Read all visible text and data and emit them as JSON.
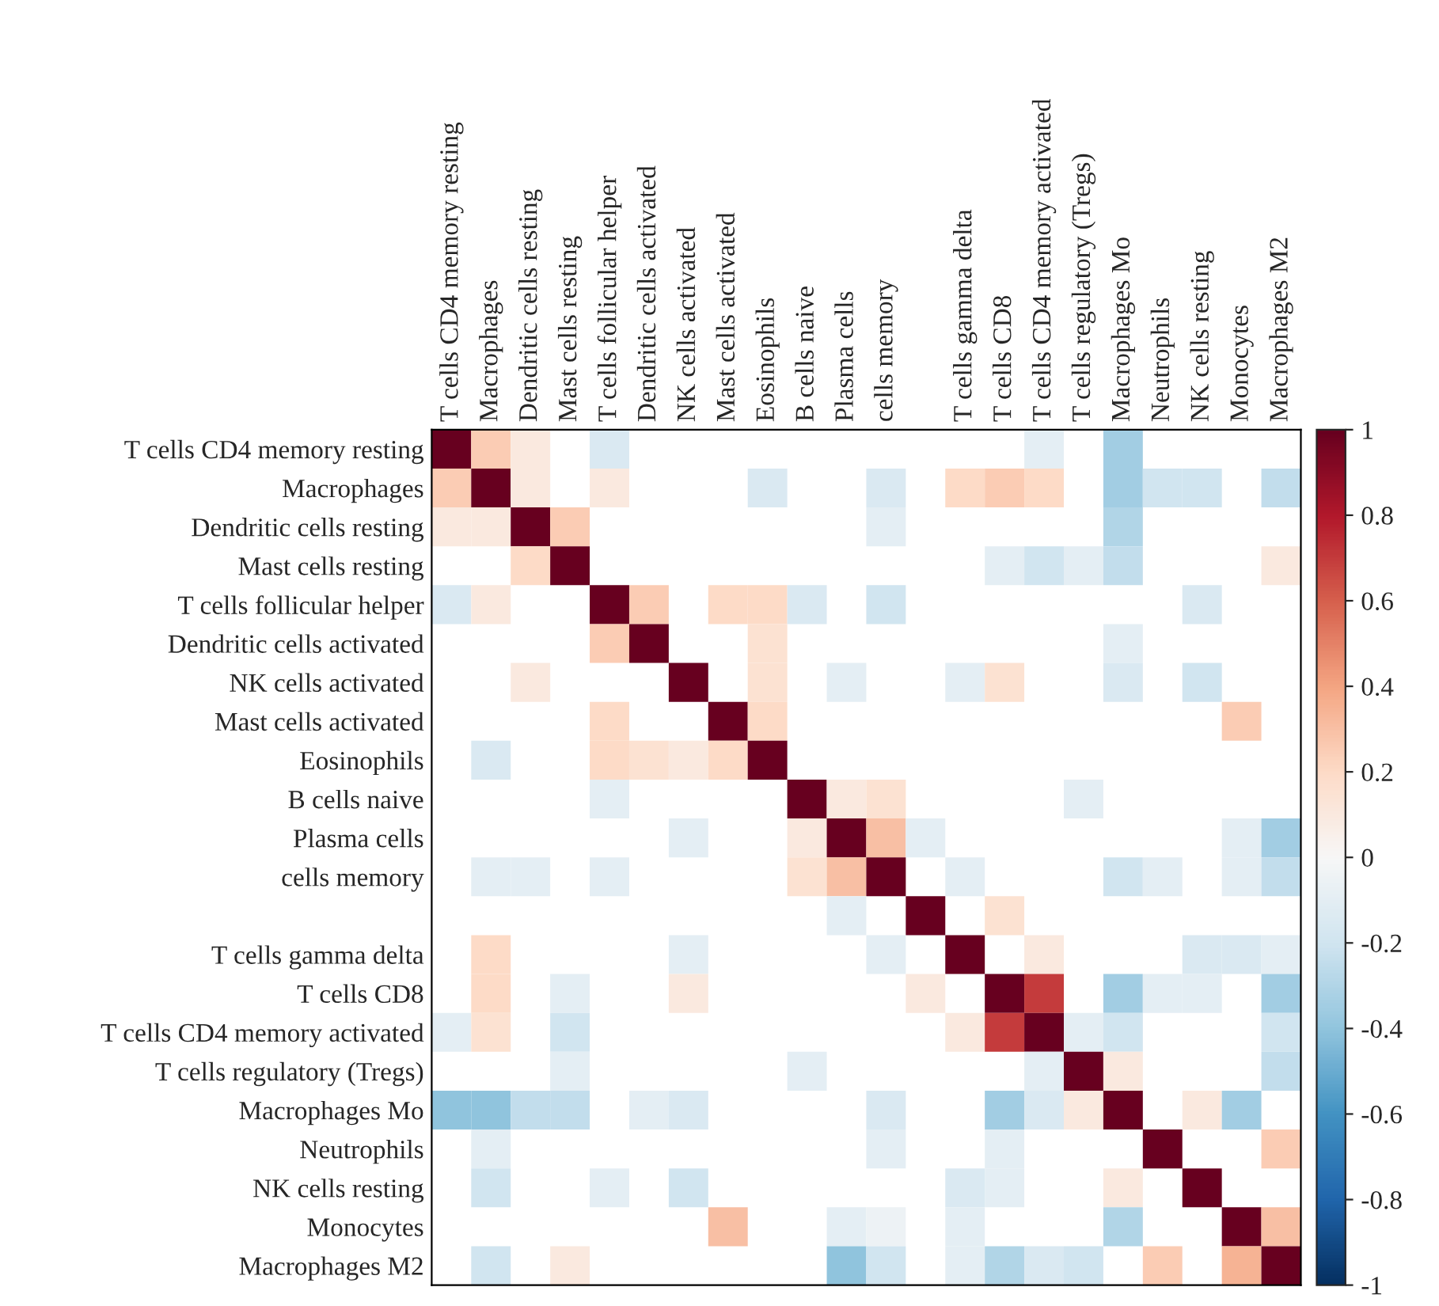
{
  "chart_data": {
    "type": "heatmap",
    "categories": [
      "T cells CD4 memory resting",
      "Macrophages",
      "Dendritic cells resting",
      "Mast cells resting",
      "T cells follicular helper",
      "Dendritic cells activated",
      "NK cells activated",
      "Mast cells activated",
      "Eosinophils",
      "B cells naive",
      "Plasma cells",
      "cells memory",
      null,
      "T cells gamma delta",
      "T cells CD8",
      "T cells CD4 memory activated",
      "T cells regulatory (Tregs)",
      "Macrophages Mo",
      "Neutrophils",
      "NK cells resting",
      "Monocytes",
      "Macrophages M2"
    ],
    "y_categories": [
      "T cells CD4 memory resting",
      "Macrophages",
      "Dendritic cells resting",
      "Mast cells resting",
      "T cells follicular helper",
      "Dendritic cells activated",
      "NK cells activated",
      "Mast cells activated",
      "Eosinophils",
      "B cells naive",
      "Plasma cells",
      "cells memory",
      null,
      "T cells gamma delta",
      "T cells CD8",
      "T cells CD4 memory activated",
      "T cells regulatory (Tregs)",
      "Macrophages Mo",
      "Neutrophils",
      "NK cells resting",
      "Monocytes",
      "Macrophages M2"
    ],
    "cells": [
      [
        1,
        0.25,
        0.1,
        null,
        -0.15,
        null,
        null,
        null,
        null,
        null,
        null,
        null,
        null,
        null,
        null,
        -0.1,
        null,
        -0.35,
        null,
        null,
        null,
        null
      ],
      [
        0.25,
        1,
        0.1,
        null,
        0.1,
        null,
        null,
        null,
        -0.15,
        null,
        null,
        -0.15,
        null,
        0.2,
        0.25,
        0.2,
        null,
        -0.35,
        -0.2,
        -0.2,
        null,
        -0.25
      ],
      [
        0.1,
        0.1,
        1,
        0.25,
        null,
        null,
        null,
        null,
        null,
        null,
        null,
        -0.1,
        null,
        null,
        null,
        null,
        null,
        -0.3,
        null,
        null,
        null,
        null
      ],
      [
        null,
        null,
        0.2,
        1,
        null,
        null,
        null,
        null,
        null,
        null,
        null,
        null,
        null,
        null,
        -0.1,
        -0.2,
        -0.1,
        -0.25,
        null,
        null,
        null,
        0.1
      ],
      [
        -0.15,
        0.1,
        null,
        null,
        1,
        0.25,
        null,
        0.2,
        0.2,
        -0.15,
        null,
        -0.2,
        null,
        null,
        null,
        null,
        null,
        null,
        null,
        -0.15,
        null,
        null
      ],
      [
        null,
        null,
        null,
        null,
        0.25,
        1,
        null,
        null,
        0.15,
        null,
        null,
        null,
        null,
        null,
        null,
        null,
        null,
        -0.1,
        null,
        null,
        null,
        null
      ],
      [
        null,
        null,
        0.1,
        null,
        null,
        null,
        1,
        null,
        0.15,
        null,
        -0.1,
        null,
        null,
        -0.1,
        0.15,
        null,
        null,
        -0.15,
        null,
        -0.2,
        null,
        null
      ],
      [
        null,
        null,
        null,
        null,
        0.2,
        null,
        null,
        1,
        0.2,
        null,
        null,
        null,
        null,
        null,
        null,
        null,
        null,
        null,
        null,
        null,
        0.25,
        null
      ],
      [
        null,
        -0.15,
        null,
        null,
        0.2,
        0.15,
        0.1,
        0.2,
        1,
        null,
        null,
        null,
        null,
        null,
        null,
        null,
        null,
        null,
        null,
        null,
        null,
        null
      ],
      [
        null,
        null,
        null,
        null,
        -0.1,
        null,
        null,
        null,
        null,
        1,
        0.1,
        0.15,
        null,
        null,
        null,
        null,
        -0.1,
        null,
        null,
        null,
        null,
        null
      ],
      [
        null,
        null,
        null,
        null,
        null,
        null,
        -0.1,
        null,
        null,
        0.1,
        1,
        0.3,
        -0.1,
        null,
        null,
        null,
        null,
        null,
        null,
        null,
        -0.1,
        -0.35
      ],
      [
        null,
        -0.1,
        -0.1,
        null,
        -0.1,
        null,
        null,
        null,
        null,
        0.15,
        0.3,
        1,
        null,
        -0.1,
        null,
        null,
        null,
        -0.2,
        -0.1,
        null,
        -0.1,
        -0.25
      ],
      [
        null,
        null,
        null,
        null,
        null,
        null,
        null,
        null,
        null,
        null,
        -0.1,
        null,
        1,
        null,
        0.15,
        null,
        null,
        null,
        null,
        null,
        null,
        null
      ],
      [
        null,
        0.2,
        null,
        null,
        null,
        null,
        -0.1,
        null,
        null,
        null,
        null,
        -0.1,
        null,
        1,
        null,
        0.1,
        null,
        null,
        null,
        -0.15,
        -0.15,
        -0.1
      ],
      [
        null,
        0.2,
        null,
        -0.1,
        null,
        null,
        0.1,
        null,
        null,
        null,
        null,
        null,
        0.1,
        null,
        1,
        0.7,
        null,
        -0.35,
        -0.1,
        -0.1,
        null,
        -0.35
      ],
      [
        -0.1,
        0.15,
        null,
        -0.2,
        null,
        null,
        null,
        null,
        null,
        null,
        null,
        null,
        null,
        0.1,
        0.7,
        1,
        -0.1,
        -0.2,
        null,
        null,
        null,
        -0.2
      ],
      [
        null,
        null,
        null,
        -0.1,
        null,
        null,
        null,
        null,
        null,
        -0.1,
        null,
        null,
        null,
        null,
        null,
        -0.1,
        1,
        0.1,
        null,
        null,
        null,
        -0.25
      ],
      [
        -0.4,
        -0.4,
        -0.25,
        -0.25,
        null,
        -0.1,
        -0.15,
        null,
        null,
        null,
        null,
        -0.15,
        null,
        null,
        -0.35,
        -0.15,
        0.1,
        1,
        null,
        0.1,
        -0.35,
        null
      ],
      [
        null,
        -0.1,
        null,
        null,
        null,
        null,
        null,
        null,
        null,
        null,
        null,
        -0.1,
        null,
        null,
        -0.1,
        null,
        null,
        null,
        1,
        null,
        null,
        0.25
      ],
      [
        null,
        -0.2,
        null,
        null,
        -0.1,
        null,
        -0.2,
        null,
        null,
        null,
        null,
        null,
        null,
        -0.15,
        -0.1,
        null,
        null,
        0.1,
        null,
        1,
        null,
        null
      ],
      [
        null,
        null,
        null,
        null,
        null,
        null,
        null,
        0.3,
        null,
        null,
        -0.1,
        -0.05,
        null,
        -0.1,
        null,
        null,
        null,
        -0.3,
        null,
        null,
        1,
        0.3
      ],
      [
        null,
        -0.2,
        null,
        0.1,
        null,
        null,
        null,
        null,
        null,
        null,
        -0.4,
        -0.2,
        null,
        -0.1,
        -0.3,
        -0.15,
        -0.2,
        null,
        0.25,
        null,
        0.35,
        1
      ]
    ],
    "clim": [
      -1,
      1
    ],
    "cticks": [
      -1,
      -0.8,
      -0.6,
      -0.4,
      -0.2,
      0,
      0.2,
      0.4,
      0.6,
      0.8,
      1
    ],
    "grid": false
  }
}
